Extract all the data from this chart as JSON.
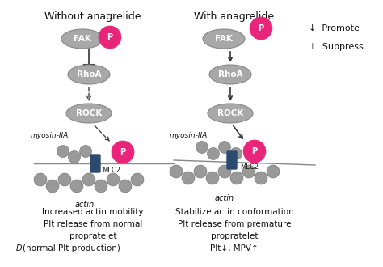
{
  "title_left": "Without anagrelide",
  "title_right": "With anagrelide",
  "legend_promote": "↓  Promote",
  "legend_suppress": "⊥  Suppress",
  "bottom_left_line1": "Increased actin mobility",
  "bottom_left_line2": "Plt release from normal",
  "bottom_left_line3": "propratelet",
  "bottom_left_line4_d": "D",
  "bottom_left_line4": "(normal Plt production)",
  "bottom_right_line1": "Stabilize actin conformation",
  "bottom_right_line2": "Plt release from premature",
  "bottom_right_line3": "propratelet",
  "bottom_right_line4": "Plt↓, MPV↑",
  "ellipse_color": "#a8a8a8",
  "ellipse_edge": "#888888",
  "pink_color": "#e8257a",
  "dark_color": "#2c4a6e",
  "arrow_color": "#444444",
  "bg_color": "#ffffff",
  "text_color": "#111111"
}
